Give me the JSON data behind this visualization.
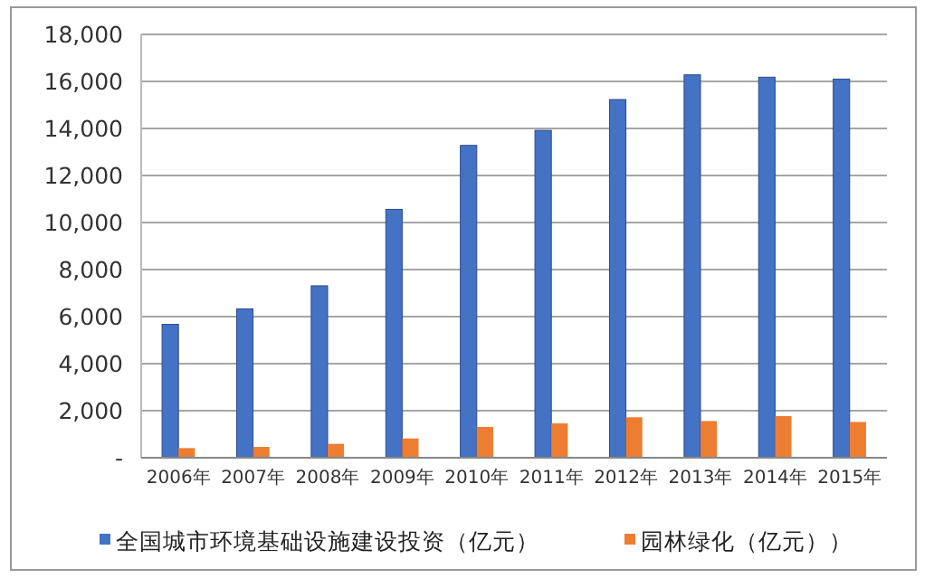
{
  "chart_data": {
    "type": "bar",
    "categories": [
      "2006年",
      "2007年",
      "2008年",
      "2009年",
      "2010年",
      "2011年",
      "2012年",
      "2013年",
      "2014年",
      "2015年"
    ],
    "series": [
      {
        "name": "全国城市环境基础设施建设投资（亿元）",
        "color": "#4472c4",
        "values": [
          5670,
          6330,
          7310,
          10560,
          13280,
          13920,
          15230,
          16280,
          16180,
          16100
        ]
      },
      {
        "name": "园林绿化（亿元））",
        "color": "#ed7d31",
        "values": [
          410,
          460,
          590,
          820,
          1310,
          1460,
          1720,
          1560,
          1770,
          1520
        ]
      }
    ],
    "ylim": [
      0,
      18000
    ],
    "yticks": [
      {
        "value": 0,
        "label": "-"
      },
      {
        "value": 2000,
        "label": "2,000"
      },
      {
        "value": 4000,
        "label": "4,000"
      },
      {
        "value": 6000,
        "label": "6,000"
      },
      {
        "value": 8000,
        "label": "8,000"
      },
      {
        "value": 10000,
        "label": "10,000"
      },
      {
        "value": 12000,
        "label": "12,000"
      },
      {
        "value": 14000,
        "label": "14,000"
      },
      {
        "value": 16000,
        "label": "16,000"
      },
      {
        "value": 18000,
        "label": "18,000"
      }
    ],
    "grid": "y",
    "legend": "bottom"
  }
}
